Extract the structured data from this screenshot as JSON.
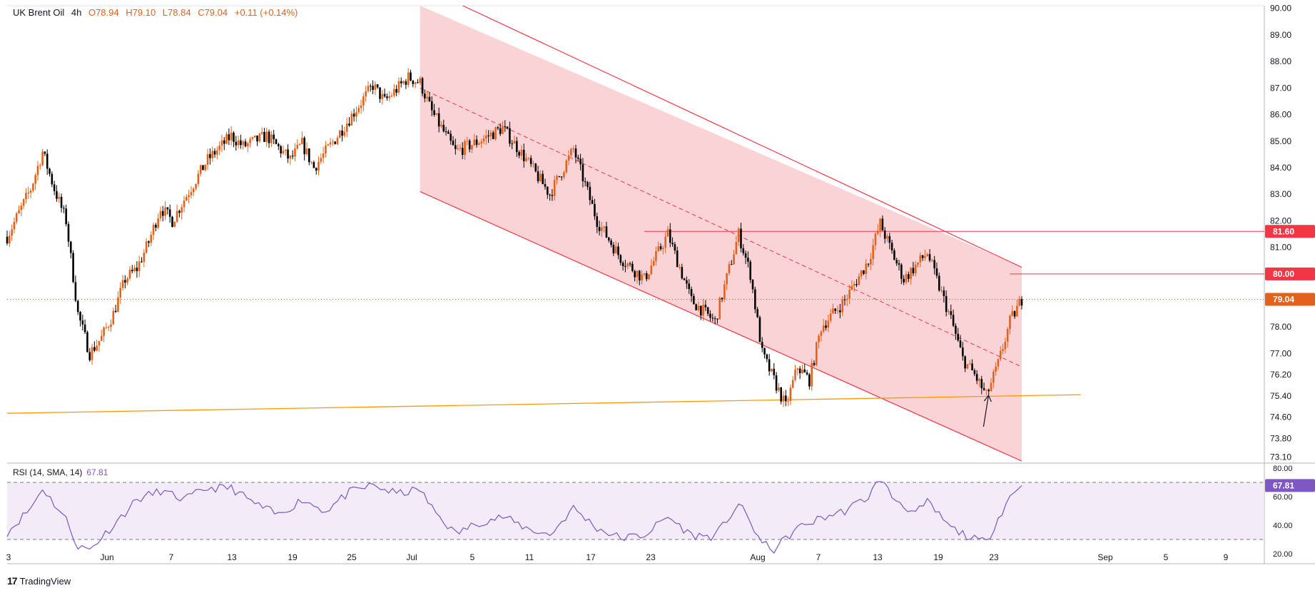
{
  "header": {
    "symbol": "UK Brent Oil",
    "interval": "4h",
    "open": "O78.94",
    "high": "H79.10",
    "low": "L78.84",
    "close": "C79.04",
    "change": "+0.11 (+0.14%)"
  },
  "rsi": {
    "label": "RSI (14, SMA, 14)",
    "value": "67.81"
  },
  "footer": {
    "brand": "TradingView"
  },
  "colors": {
    "up": "#e2621b",
    "down": "#000000",
    "channel_fill": "#f8c4c8",
    "channel_line": "#f23645",
    "support_line": "#ff9800",
    "rsi_line": "#7e57c2",
    "rsi_band": "#ede7f6"
  },
  "chart_data": {
    "type": "candlestick",
    "price_axis_ticks": [
      "90.00",
      "89.00",
      "88.00",
      "87.00",
      "86.00",
      "85.00",
      "84.00",
      "83.00",
      "82.00",
      "81.00",
      "80.00",
      "79.04",
      "78.00",
      "77.00",
      "76.20",
      "75.40",
      "74.60",
      "73.80",
      "73.10"
    ],
    "price_range": [
      72.9,
      90.1
    ],
    "x_axis_labels": [
      "3",
      "Jun",
      "7",
      "13",
      "19",
      "25",
      "Jul",
      "5",
      "11",
      "17",
      "23",
      "Aug",
      "7",
      "13",
      "19",
      "23",
      "Sep",
      "5",
      "9"
    ],
    "horizontal_levels": [
      {
        "label": "81.60",
        "value": 81.6
      },
      {
        "label": "80.00",
        "value": 80.0
      }
    ],
    "current_price": {
      "label": "79.04",
      "value": 79.04
    },
    "channel": {
      "upper": [
        [
          "Jul 5",
          90.1
        ],
        [
          "Aug 25",
          80.25
        ]
      ],
      "lower": [
        [
          "Jul 5",
          83.1
        ],
        [
          "Aug 25",
          72.95
        ]
      ],
      "mid": [
        [
          "Jul 5",
          87.0
        ],
        [
          "Aug 25",
          76.5
        ]
      ]
    },
    "support_line": [
      [
        "May 31",
        74.75
      ],
      [
        "Aug 30",
        75.45
      ]
    ],
    "price_path": [
      [
        "May 31",
        81.4
      ],
      [
        "Jun 1",
        82.3
      ],
      [
        "Jun 2",
        83.2
      ],
      [
        "Jun 3",
        84.6
      ],
      [
        "Jun 4",
        83.2
      ],
      [
        "Jun 5",
        82.0
      ],
      [
        "Jun 6",
        78.5
      ],
      [
        "Jun 7",
        77.0
      ],
      [
        "Jun 8",
        77.6
      ],
      [
        "Jun 9",
        78.5
      ],
      [
        "Jun 10",
        79.8
      ],
      [
        "Jun 11",
        80.2
      ],
      [
        "Jun 12",
        81.2
      ],
      [
        "Jun 13",
        82.5
      ],
      [
        "Jun 14",
        82.0
      ],
      [
        "Jun 15",
        82.8
      ],
      [
        "Jun 17",
        84.3
      ],
      [
        "Jun 19",
        85.2
      ],
      [
        "Jun 20",
        84.8
      ],
      [
        "Jun 22",
        85.2
      ],
      [
        "Jun 24",
        84.3
      ],
      [
        "Jun 25",
        84.9
      ],
      [
        "Jun 26",
        84.0
      ],
      [
        "Jun 28",
        85.2
      ],
      [
        "Jul 1",
        87.1
      ],
      [
        "Jul 2",
        86.5
      ],
      [
        "Jul 4",
        87.4
      ],
      [
        "Jul 5",
        87.2
      ],
      [
        "Jul 6",
        86.1
      ],
      [
        "Jul 8",
        84.6
      ],
      [
        "Jul 10",
        85.0
      ],
      [
        "Jul 12",
        85.5
      ],
      [
        "Jul 14",
        84.3
      ],
      [
        "Jul 16",
        83.0
      ],
      [
        "Jul 18",
        84.7
      ],
      [
        "Jul 20",
        82.0
      ],
      [
        "Jul 22",
        80.6
      ],
      [
        "Jul 24",
        79.8
      ],
      [
        "Jul 26",
        81.5
      ],
      [
        "Jul 28",
        79.0
      ],
      [
        "Jul 30",
        78.2
      ],
      [
        "Aug 1",
        81.5
      ],
      [
        "Aug 2",
        80.0
      ],
      [
        "Aug 3",
        77.0
      ],
      [
        "Aug 5",
        75.0
      ],
      [
        "Aug 6",
        76.5
      ],
      [
        "Aug 7",
        76.0
      ],
      [
        "Aug 8",
        78.0
      ],
      [
        "Aug 10",
        79.0
      ],
      [
        "Aug 12",
        80.5
      ],
      [
        "Aug 13",
        81.9
      ],
      [
        "Aug 14",
        80.8
      ],
      [
        "Aug 15",
        79.8
      ],
      [
        "Aug 17",
        80.8
      ],
      [
        "Aug 18",
        79.5
      ],
      [
        "Aug 19",
        78.3
      ],
      [
        "Aug 20",
        76.8
      ],
      [
        "Aug 21",
        76.2
      ],
      [
        "Aug 22",
        75.4
      ],
      [
        "Aug 23",
        76.6
      ],
      [
        "Aug 24",
        78.2
      ],
      [
        "Aug 25",
        79.04
      ]
    ],
    "rsi_axis_ticks": [
      "80.00",
      "60.00",
      "40.00",
      "20.00"
    ],
    "rsi_range": [
      13,
      83
    ],
    "rsi_bands": [
      30,
      70
    ],
    "rsi_path": [
      [
        "May 31",
        35
      ],
      [
        "Jun 2",
        52
      ],
      [
        "Jun 3",
        66
      ],
      [
        "Jun 4",
        55
      ],
      [
        "Jun 5",
        44
      ],
      [
        "Jun 6",
        25
      ],
      [
        "Jun 7",
        23
      ],
      [
        "Jun 9",
        40
      ],
      [
        "Jun 11",
        58
      ],
      [
        "Jun 13",
        64
      ],
      [
        "Jun 15",
        58
      ],
      [
        "Jun 17",
        66
      ],
      [
        "Jun 19",
        66
      ],
      [
        "Jun 21",
        55
      ],
      [
        "Jun 23",
        47
      ],
      [
        "Jun 25",
        58
      ],
      [
        "Jun 27",
        50
      ],
      [
        "Jun 29",
        63
      ],
      [
        "Jul 1",
        68
      ],
      [
        "Jul 3",
        62
      ],
      [
        "Jul 5",
        65
      ],
      [
        "Jul 6",
        52
      ],
      [
        "Jul 8",
        34
      ],
      [
        "Jul 10",
        42
      ],
      [
        "Jul 12",
        46
      ],
      [
        "Jul 14",
        38
      ],
      [
        "Jul 16",
        33
      ],
      [
        "Jul 18",
        52
      ],
      [
        "Jul 20",
        38
      ],
      [
        "Jul 22",
        31
      ],
      [
        "Jul 24",
        33
      ],
      [
        "Jul 26",
        46
      ],
      [
        "Jul 28",
        33
      ],
      [
        "Jul 30",
        32
      ],
      [
        "Aug 1",
        55
      ],
      [
        "Aug 2",
        42
      ],
      [
        "Aug 3",
        27
      ],
      [
        "Aug 4",
        23
      ],
      [
        "Aug 6",
        38
      ],
      [
        "Aug 8",
        45
      ],
      [
        "Aug 10",
        50
      ],
      [
        "Aug 12",
        60
      ],
      [
        "Aug 13",
        73
      ],
      [
        "Aug 14",
        60
      ],
      [
        "Aug 16",
        48
      ],
      [
        "Aug 17",
        56
      ],
      [
        "Aug 19",
        38
      ],
      [
        "Aug 21",
        30
      ],
      [
        "Aug 22",
        28
      ],
      [
        "Aug 23",
        45
      ],
      [
        "Aug 24",
        60
      ],
      [
        "Aug 25",
        67.81
      ]
    ]
  }
}
